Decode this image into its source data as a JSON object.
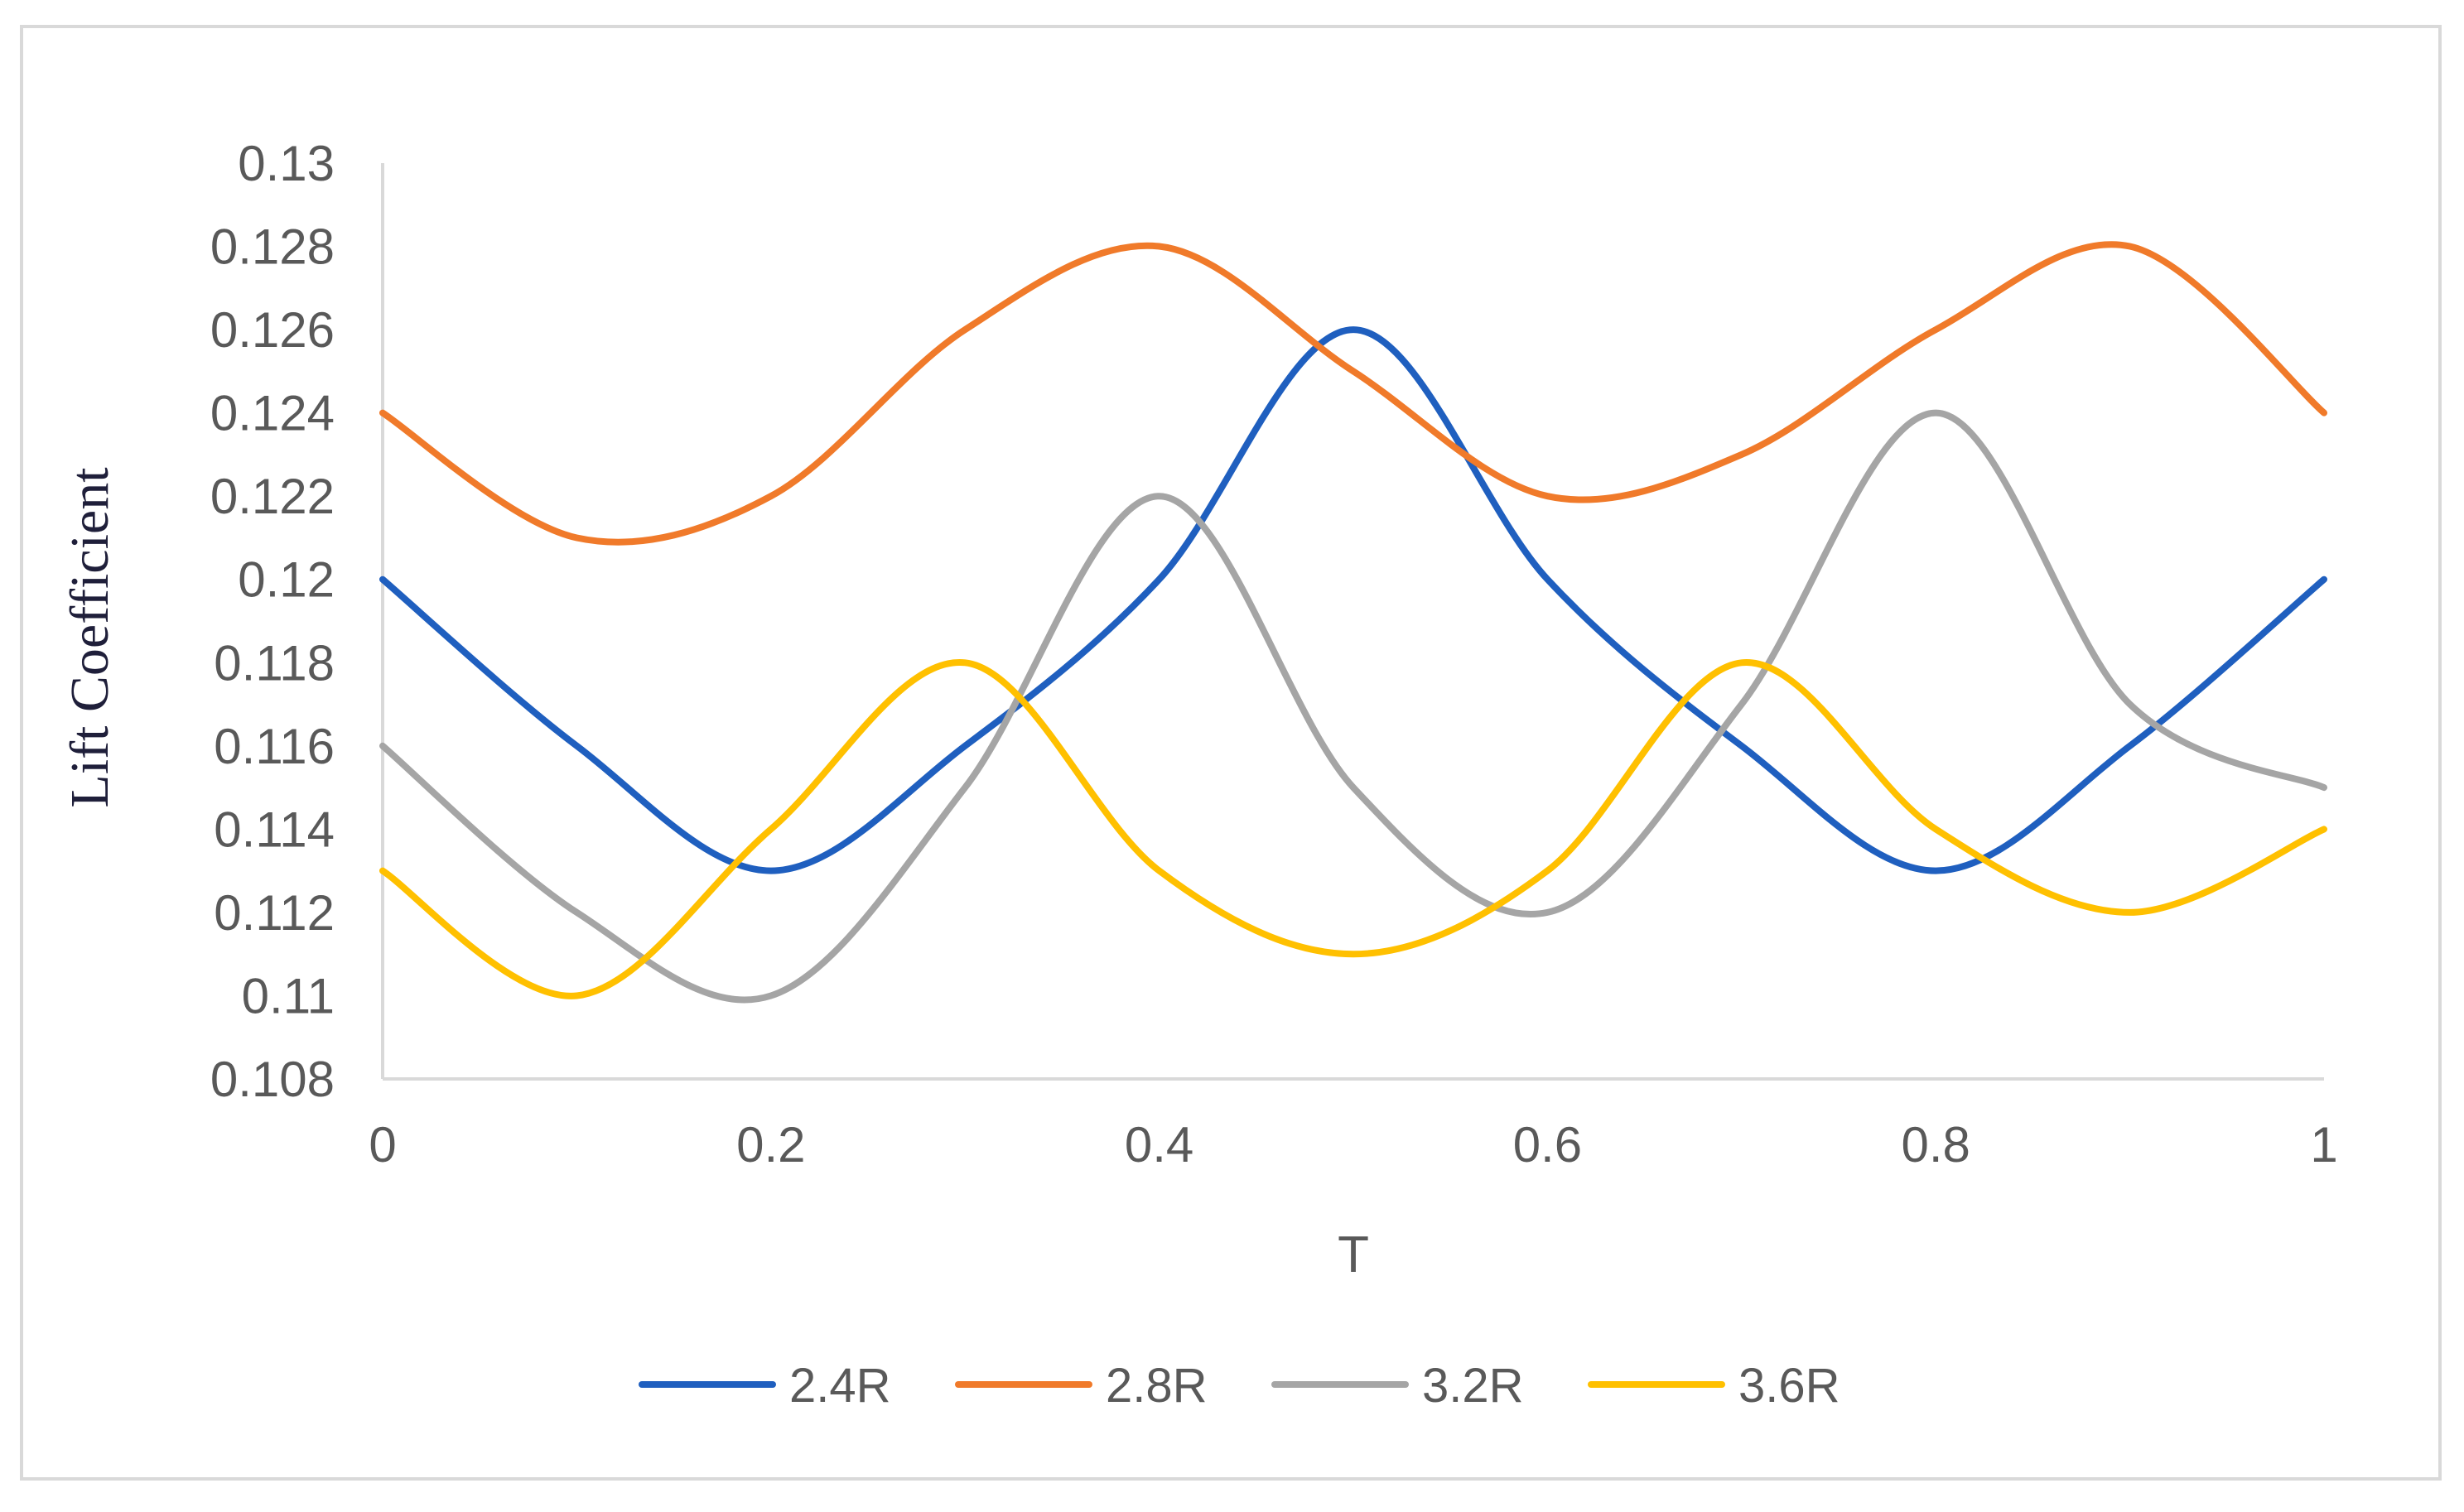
{
  "chart_data": {
    "type": "line",
    "smooth": true,
    "title": "",
    "xlabel": "T",
    "ylabel": "Lift Coefficient",
    "xlim": [
      0,
      1
    ],
    "ylim": [
      0.108,
      0.13
    ],
    "x_ticks": [
      "0",
      "0.2",
      "0.4",
      "0.6",
      "0.8",
      "1"
    ],
    "y_ticks": [
      "0.108",
      "0.11",
      "0.112",
      "0.114",
      "0.116",
      "0.118",
      "0.12",
      "0.122",
      "0.124",
      "0.126",
      "0.128",
      "0.13"
    ],
    "grid": false,
    "legend_position": "bottom",
    "x": [
      0,
      0.1,
      0.2,
      0.3,
      0.4,
      0.5,
      0.6,
      0.7,
      0.8,
      0.9,
      1.0
    ],
    "series": [
      {
        "name": "2.4R",
        "color": "#1f5fbf",
        "values": [
          0.12,
          0.116,
          0.113,
          0.116,
          0.12,
          0.126,
          0.12,
          0.116,
          0.113,
          0.116,
          0.12
        ]
      },
      {
        "name": "2.8R",
        "color": "#f07a2a",
        "values": [
          0.124,
          0.121,
          0.122,
          0.126,
          0.128,
          0.125,
          0.122,
          0.123,
          0.126,
          0.128,
          0.124
        ]
      },
      {
        "name": "3.2R",
        "color": "#a5a5a5",
        "values": [
          0.116,
          0.112,
          0.11,
          0.115,
          0.122,
          0.115,
          0.112,
          0.117,
          0.124,
          0.117,
          0.115
        ]
      },
      {
        "name": "3.6R",
        "color": "#ffc000",
        "values": [
          0.113,
          0.11,
          0.114,
          0.118,
          0.113,
          0.111,
          0.113,
          0.118,
          0.114,
          0.112,
          0.114
        ]
      }
    ]
  }
}
